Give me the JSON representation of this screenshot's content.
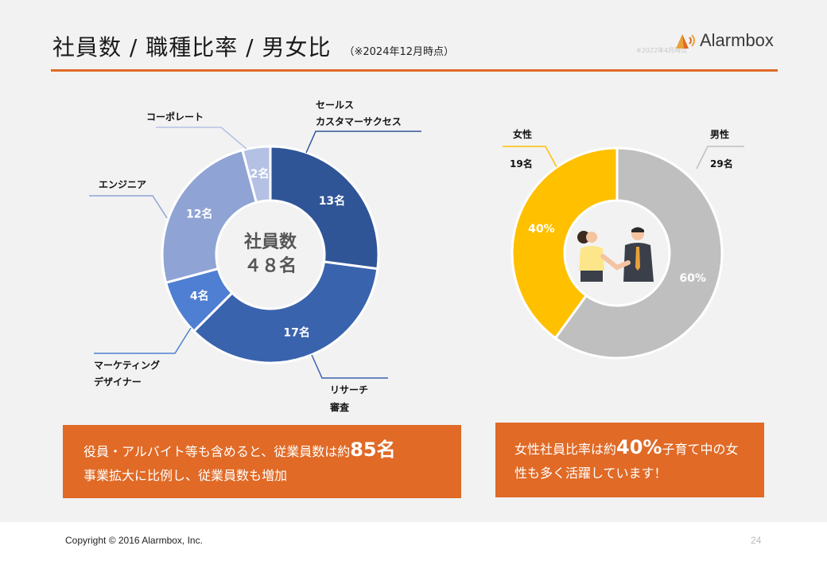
{
  "header": {
    "title": "社員数 / 職種比率 / 男女比",
    "subtitle": "（※2024年12月時点）",
    "logo_text": "Alarmbox",
    "watermark": "※2022年4月時点"
  },
  "chart_data": [
    {
      "type": "pie",
      "variant": "donut",
      "center_label": [
        "社員数",
        "４８名"
      ],
      "slices": [
        {
          "label": "セールス\nカスタマーサクセス",
          "value": 13,
          "value_label": "13名",
          "color": "#2f5597"
        },
        {
          "label": "リサーチ\n審査",
          "value": 17,
          "value_label": "17名",
          "color": "#3a63ad"
        },
        {
          "label": "マーケティング\nデザイナー",
          "value": 4,
          "value_label": "4名",
          "color": "#4f7fd2"
        },
        {
          "label": "エンジニア",
          "value": 12,
          "value_label": "12名",
          "color": "#8fa4d4"
        },
        {
          "label": "コーポレート",
          "value": 2,
          "value_label": "2名",
          "color": "#b4c1e4"
        }
      ]
    },
    {
      "type": "pie",
      "variant": "donut",
      "slices": [
        {
          "label": "男性",
          "count_label": "29名",
          "value": 60,
          "value_label": "60%",
          "color": "#bfbfbf"
        },
        {
          "label": "女性",
          "count_label": "19名",
          "value": 40,
          "value_label": "40%",
          "color": "#ffc000"
        }
      ]
    }
  ],
  "boxes": {
    "left": {
      "line1_pre": "役員・アルバイト等も含めると、従業員数は約",
      "line1_big": "85名",
      "line2": "事業拡大に比例し、従業員数も増加"
    },
    "right": {
      "pre": "女性社員比率は約",
      "big": "40%",
      "post": "子育て中の女性も多く活躍しています！"
    }
  },
  "footer": {
    "copyright": "Copyright © 2016 Alarmbox, Inc.",
    "page": "24"
  }
}
